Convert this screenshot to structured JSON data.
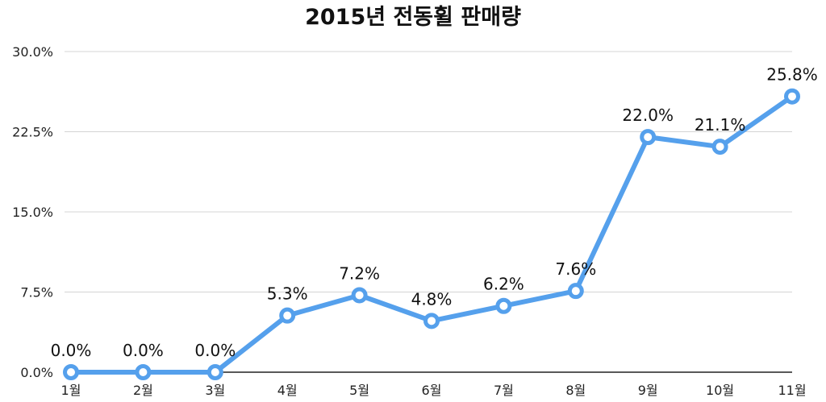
{
  "chart_data": {
    "type": "line",
    "title": "2015년 전동휠 판매량",
    "categories": [
      "1월",
      "2월",
      "3월",
      "4월",
      "5월",
      "6월",
      "7월",
      "8월",
      "9월",
      "10월",
      "11월"
    ],
    "series": [
      {
        "values": [
          0.0,
          0.0,
          0.0,
          5.3,
          7.2,
          4.8,
          6.2,
          7.6,
          22.0,
          21.1,
          25.8
        ],
        "labels": [
          "0.0%",
          "0.0%",
          "0.0%",
          "5.3%",
          "7.2%",
          "4.8%",
          "6.2%",
          "7.6%",
          "22.0%",
          "21.1%",
          "25.8%"
        ],
        "color": "#55a0ec"
      }
    ],
    "ylim": [
      0,
      30
    ],
    "yticks": [
      0,
      7.5,
      15,
      22.5,
      30
    ],
    "ytick_labels": [
      "0.0%",
      "7.5%",
      "15.0%",
      "22.5%",
      "30.0%"
    ],
    "grid": true,
    "xlabel": "",
    "ylabel": ""
  }
}
